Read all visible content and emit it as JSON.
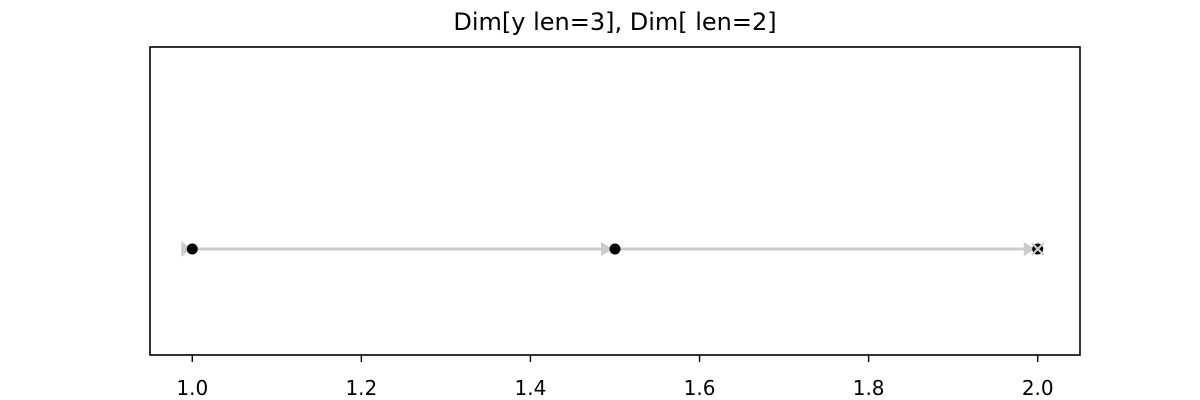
{
  "chart_data": {
    "type": "line",
    "title": "Dim[y len=3], Dim[ len=2]",
    "xlabel": "",
    "ylabel": "",
    "xlim": [
      0.95,
      2.05
    ],
    "x_ticks": [
      1.0,
      1.2,
      1.4,
      1.6,
      1.8,
      2.0
    ],
    "x_tick_labels": [
      "1.0",
      "1.2",
      "1.4",
      "1.6",
      "1.8",
      "2.0"
    ],
    "y_ticks_visible": false,
    "grid": false,
    "series": [
      {
        "points": [
          {
            "x": 1.0,
            "y": 0
          },
          {
            "x": 1.5,
            "y": 0
          },
          {
            "x": 2.0,
            "y": 0
          }
        ],
        "point_color": "#000000",
        "line_color": "#cccccc",
        "end_marker": "x"
      }
    ]
  }
}
